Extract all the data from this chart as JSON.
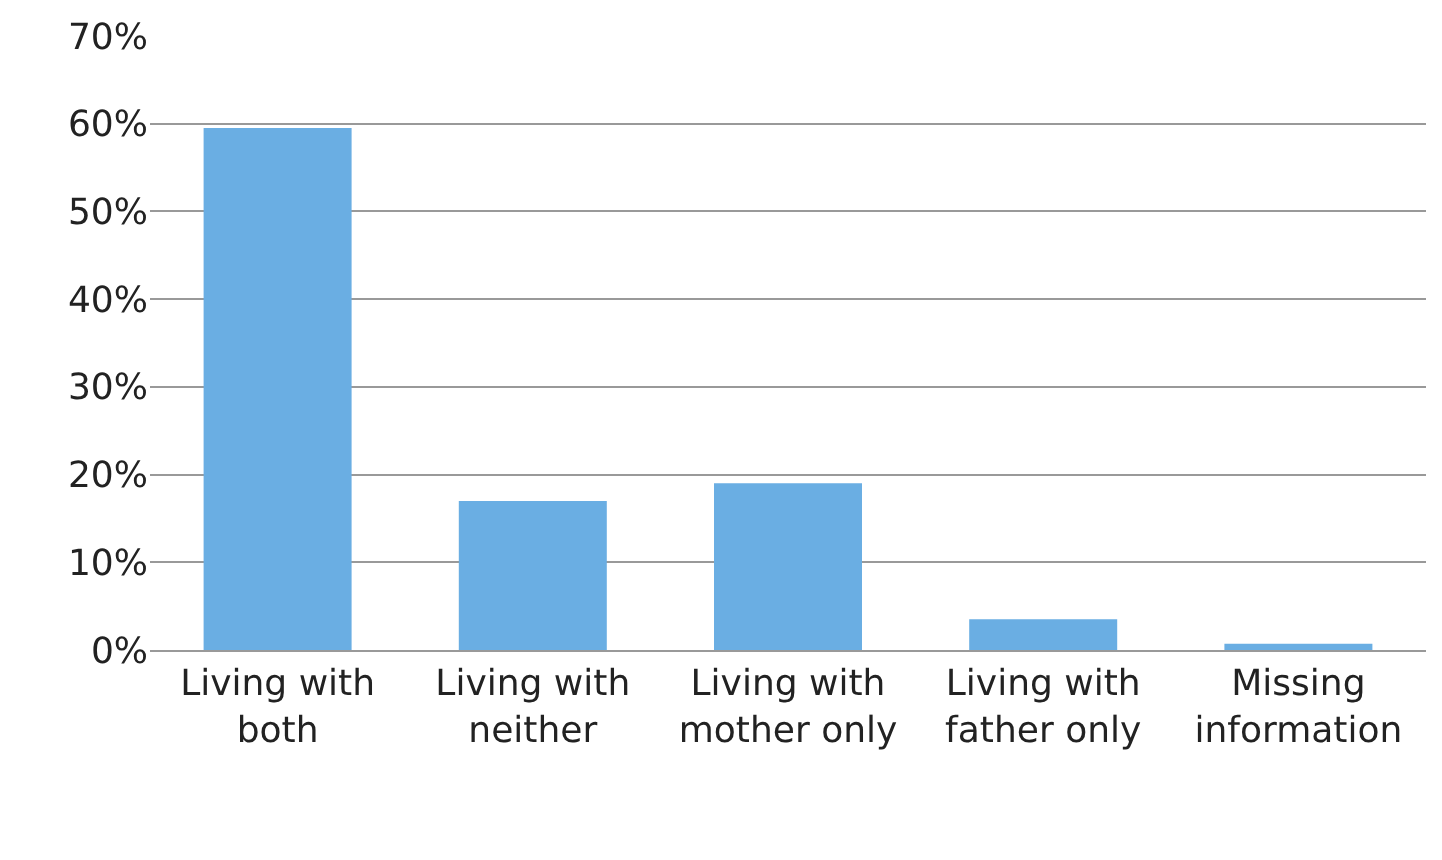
{
  "chart_data": {
    "type": "bar",
    "categories": [
      "Living with both",
      "Living with neither",
      "Living with mother only",
      "Living with father only",
      "Missing information"
    ],
    "values": [
      59.5,
      17,
      19,
      3.5,
      0.7
    ],
    "color": "#6aaee3",
    "ylim": [
      0,
      70
    ],
    "yticks": [
      {
        "value": 0,
        "label": "0%"
      },
      {
        "value": 10,
        "label": "10%"
      },
      {
        "value": 20,
        "label": "20%"
      },
      {
        "value": 30,
        "label": "30%"
      },
      {
        "value": 40,
        "label": "40%"
      },
      {
        "value": 50,
        "label": "50%"
      },
      {
        "value": 60,
        "label": "60%"
      },
      {
        "value": 70,
        "label": "70%"
      }
    ],
    "grid": "y"
  }
}
